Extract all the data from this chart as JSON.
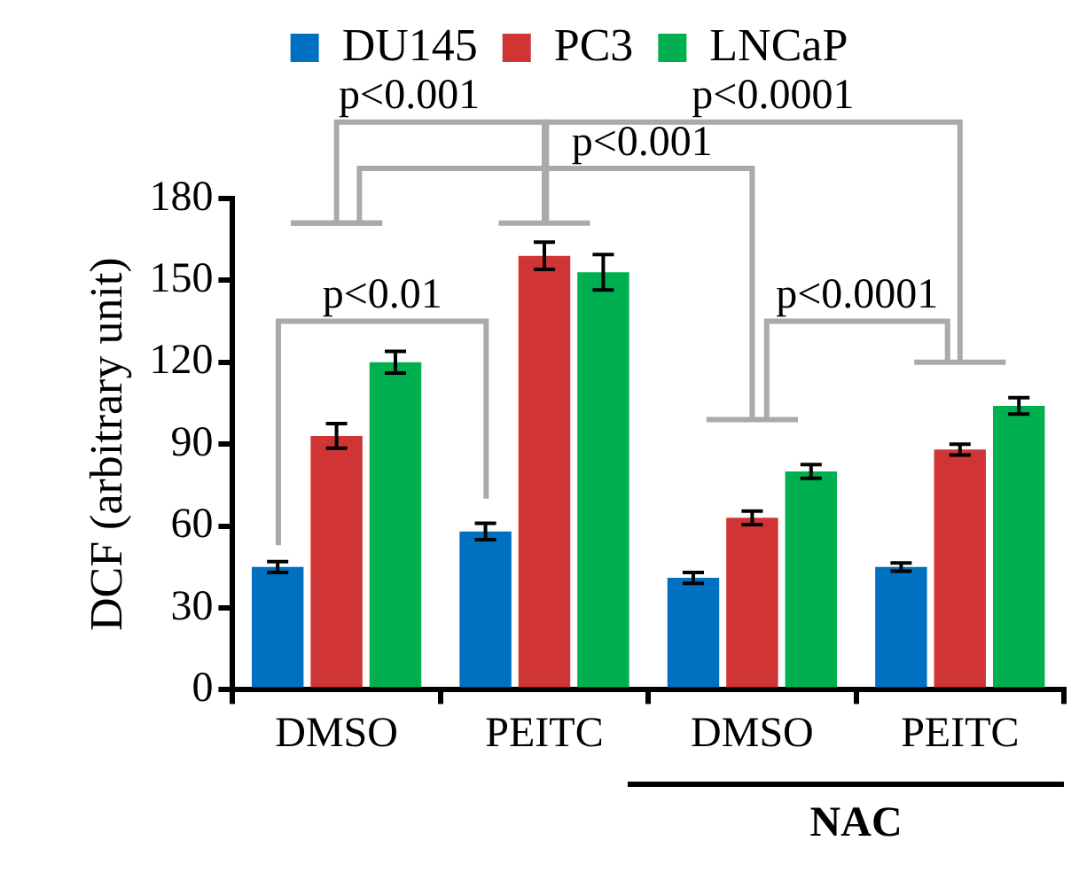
{
  "chart_data": {
    "type": "bar",
    "ylabel": "DCF (arbitrary unit)",
    "categories": [
      "DMSO",
      "PEITC",
      "DMSO",
      "PEITC"
    ],
    "series": [
      {
        "name": "DU145",
        "color": "#0070c0",
        "values": [
          45,
          58,
          41,
          45
        ],
        "errors": [
          2,
          3,
          2,
          1.5
        ]
      },
      {
        "name": "PC3",
        "color": "#d03434",
        "values": [
          93,
          159,
          63,
          88
        ],
        "errors": [
          4.5,
          5,
          2.5,
          2
        ]
      },
      {
        "name": "LNCaP",
        "color": "#00b050",
        "values": [
          120,
          153,
          80,
          104
        ],
        "errors": [
          4,
          6.5,
          2.5,
          3
        ]
      }
    ],
    "ylim": [
      0,
      180
    ],
    "yticks": [
      0,
      30,
      60,
      90,
      120,
      150,
      180
    ],
    "grid": false,
    "legend": "top",
    "annotations": [
      "p<0.01",
      "p<0.001",
      "p<0.001",
      "p<0.0001",
      "p<0.0001",
      "NAC"
    ]
  }
}
